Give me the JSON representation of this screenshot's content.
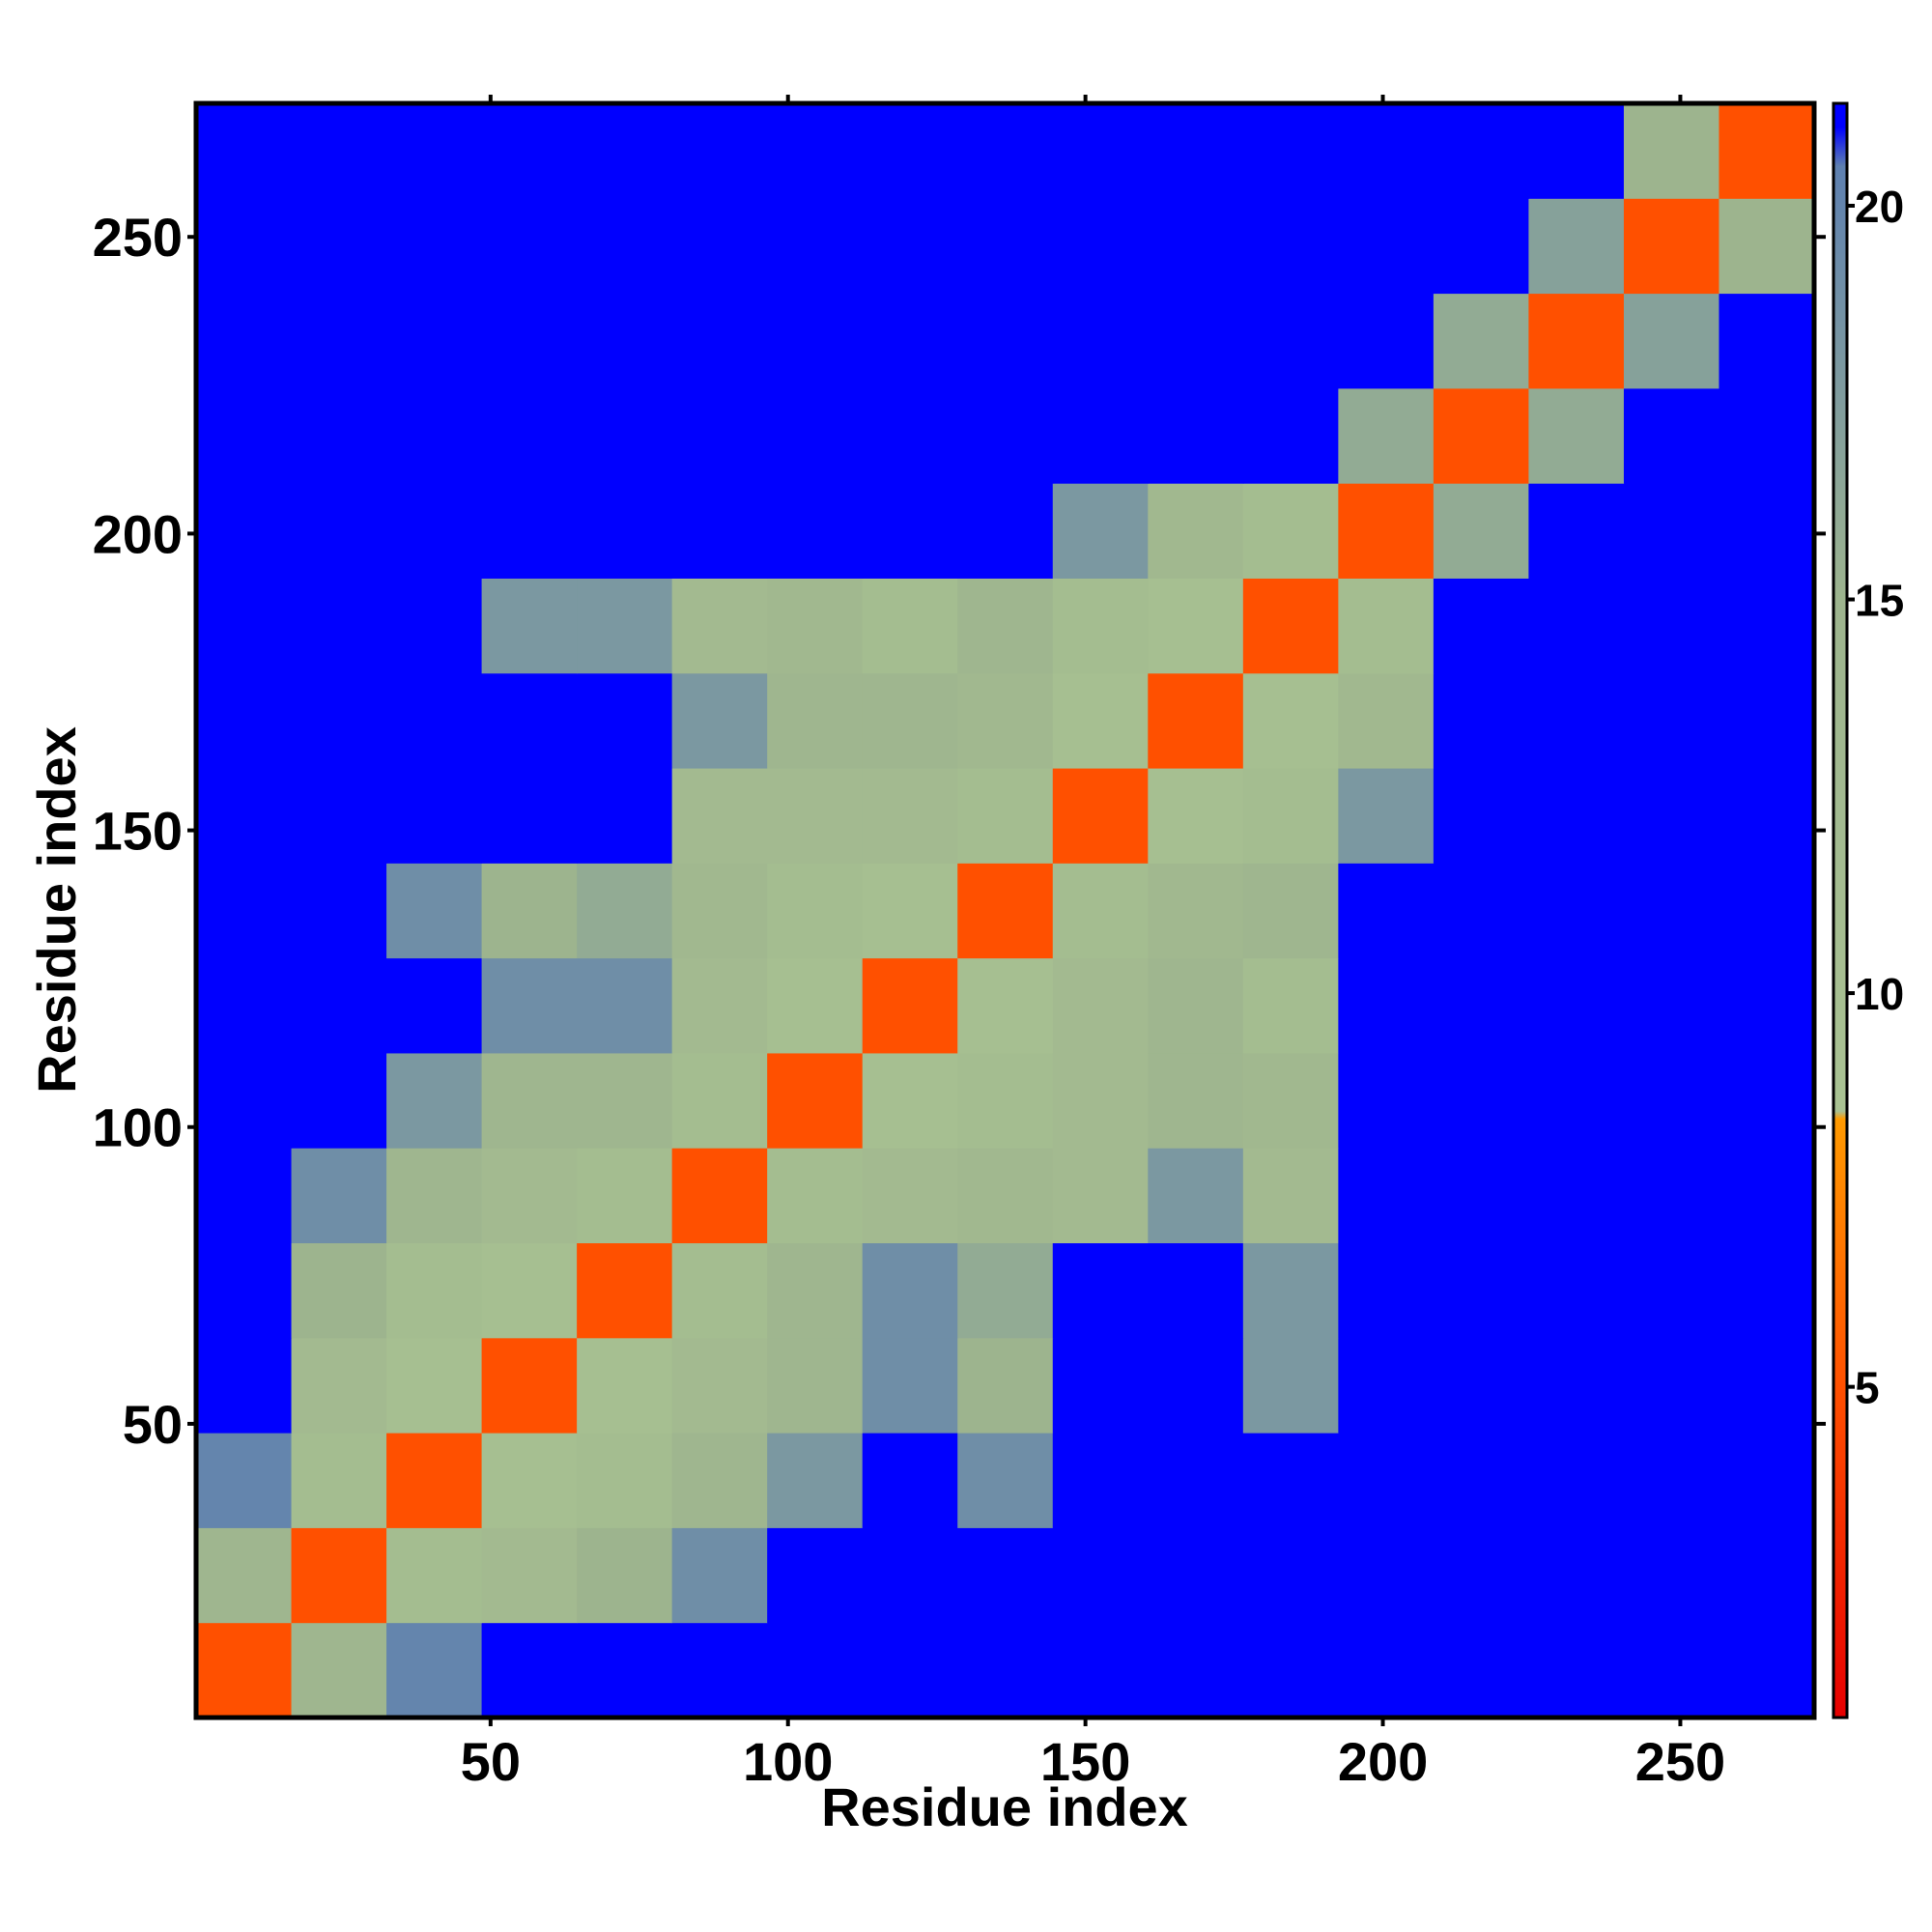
{
  "chart_data": {
    "type": "heatmap",
    "xlabel": "Residue index",
    "ylabel": "Residue index",
    "x": [
      8.5,
      24.5,
      40.5,
      56.5,
      72.5,
      88.5,
      104.5,
      120.5,
      136.5,
      152.5,
      168.5,
      184.5,
      200.5,
      216.5,
      232.5,
      248.5,
      264.5
    ],
    "y": [
      8.5,
      24.5,
      40.5,
      56.5,
      72.5,
      88.5,
      104.5,
      120.5,
      136.5,
      152.5,
      168.5,
      184.5,
      200.5,
      216.5,
      232.5,
      248.5,
      264.5
    ],
    "z": [
      [
        5,
        14,
        20,
        21,
        21,
        21,
        21,
        21,
        21,
        21,
        21,
        21,
        21,
        21,
        21,
        21,
        21
      ],
      [
        14,
        5,
        11,
        12,
        15,
        19,
        21,
        21,
        21,
        21,
        21,
        21,
        21,
        21,
        21,
        21,
        21
      ],
      [
        20,
        11,
        5,
        10,
        11,
        14,
        18,
        21,
        19,
        21,
        21,
        21,
        21,
        21,
        21,
        21,
        21
      ],
      [
        21,
        12,
        10,
        5,
        10,
        12,
        14,
        19,
        15,
        21,
        21,
        18,
        21,
        21,
        21,
        21,
        21
      ],
      [
        21,
        15,
        11,
        10,
        5,
        11,
        14,
        19,
        16,
        21,
        21,
        18,
        21,
        21,
        21,
        21,
        21
      ],
      [
        21,
        19,
        14,
        12,
        11,
        5,
        11,
        12,
        13,
        12,
        18,
        12,
        21,
        21,
        21,
        21,
        21
      ],
      [
        21,
        21,
        18,
        14,
        14,
        11,
        5,
        10,
        11,
        12,
        14,
        13,
        21,
        21,
        21,
        21,
        21
      ],
      [
        21,
        21,
        21,
        19,
        19,
        12,
        10,
        5,
        10,
        12,
        14,
        11,
        21,
        21,
        21,
        21,
        21
      ],
      [
        21,
        21,
        19,
        15,
        16,
        13,
        11,
        10,
        5,
        11,
        13,
        14,
        21,
        21,
        21,
        21,
        21
      ],
      [
        21,
        21,
        21,
        21,
        21,
        12,
        12,
        12,
        11,
        5,
        10,
        11,
        18,
        21,
        21,
        21,
        21
      ],
      [
        21,
        21,
        21,
        21,
        21,
        18,
        14,
        14,
        13,
        10,
        5,
        10,
        13,
        21,
        21,
        21,
        21
      ],
      [
        21,
        21,
        21,
        18,
        18,
        12,
        13,
        11,
        14,
        11,
        10,
        5,
        11,
        21,
        21,
        21,
        21
      ],
      [
        21,
        21,
        21,
        21,
        21,
        21,
        21,
        21,
        21,
        18,
        13,
        11,
        5,
        16,
        21,
        21,
        21
      ],
      [
        21,
        21,
        21,
        21,
        21,
        21,
        21,
        21,
        21,
        21,
        21,
        21,
        16,
        5,
        16,
        21,
        21
      ],
      [
        21,
        21,
        21,
        21,
        21,
        21,
        21,
        21,
        21,
        21,
        21,
        21,
        21,
        16,
        5,
        17,
        21
      ],
      [
        21,
        21,
        21,
        21,
        21,
        21,
        21,
        21,
        21,
        21,
        21,
        21,
        21,
        21,
        17,
        5,
        15
      ],
      [
        21,
        21,
        21,
        21,
        21,
        21,
        21,
        21,
        21,
        21,
        21,
        21,
        21,
        21,
        21,
        15,
        5
      ]
    ],
    "cell_size": 16,
    "xlim": [
      0.5,
      272.5
    ],
    "ylim": [
      0.5,
      272.5
    ],
    "xticks": [
      50,
      100,
      150,
      200,
      250
    ],
    "yticks": [
      50,
      100,
      150,
      200,
      250
    ],
    "zlim": [
      0.8,
      21.3
    ],
    "zticks": [
      5,
      10,
      15,
      20
    ],
    "colorscale": [
      [
        0.8,
        "#e60000"
      ],
      [
        5,
        "#ff5000"
      ],
      [
        8.4,
        "#ff9a00"
      ],
      [
        8.5,
        "#a9c292"
      ],
      [
        15,
        "#9db48e"
      ],
      [
        20.5,
        "#5e80b0"
      ],
      [
        21,
        "#0000ff"
      ]
    ]
  }
}
